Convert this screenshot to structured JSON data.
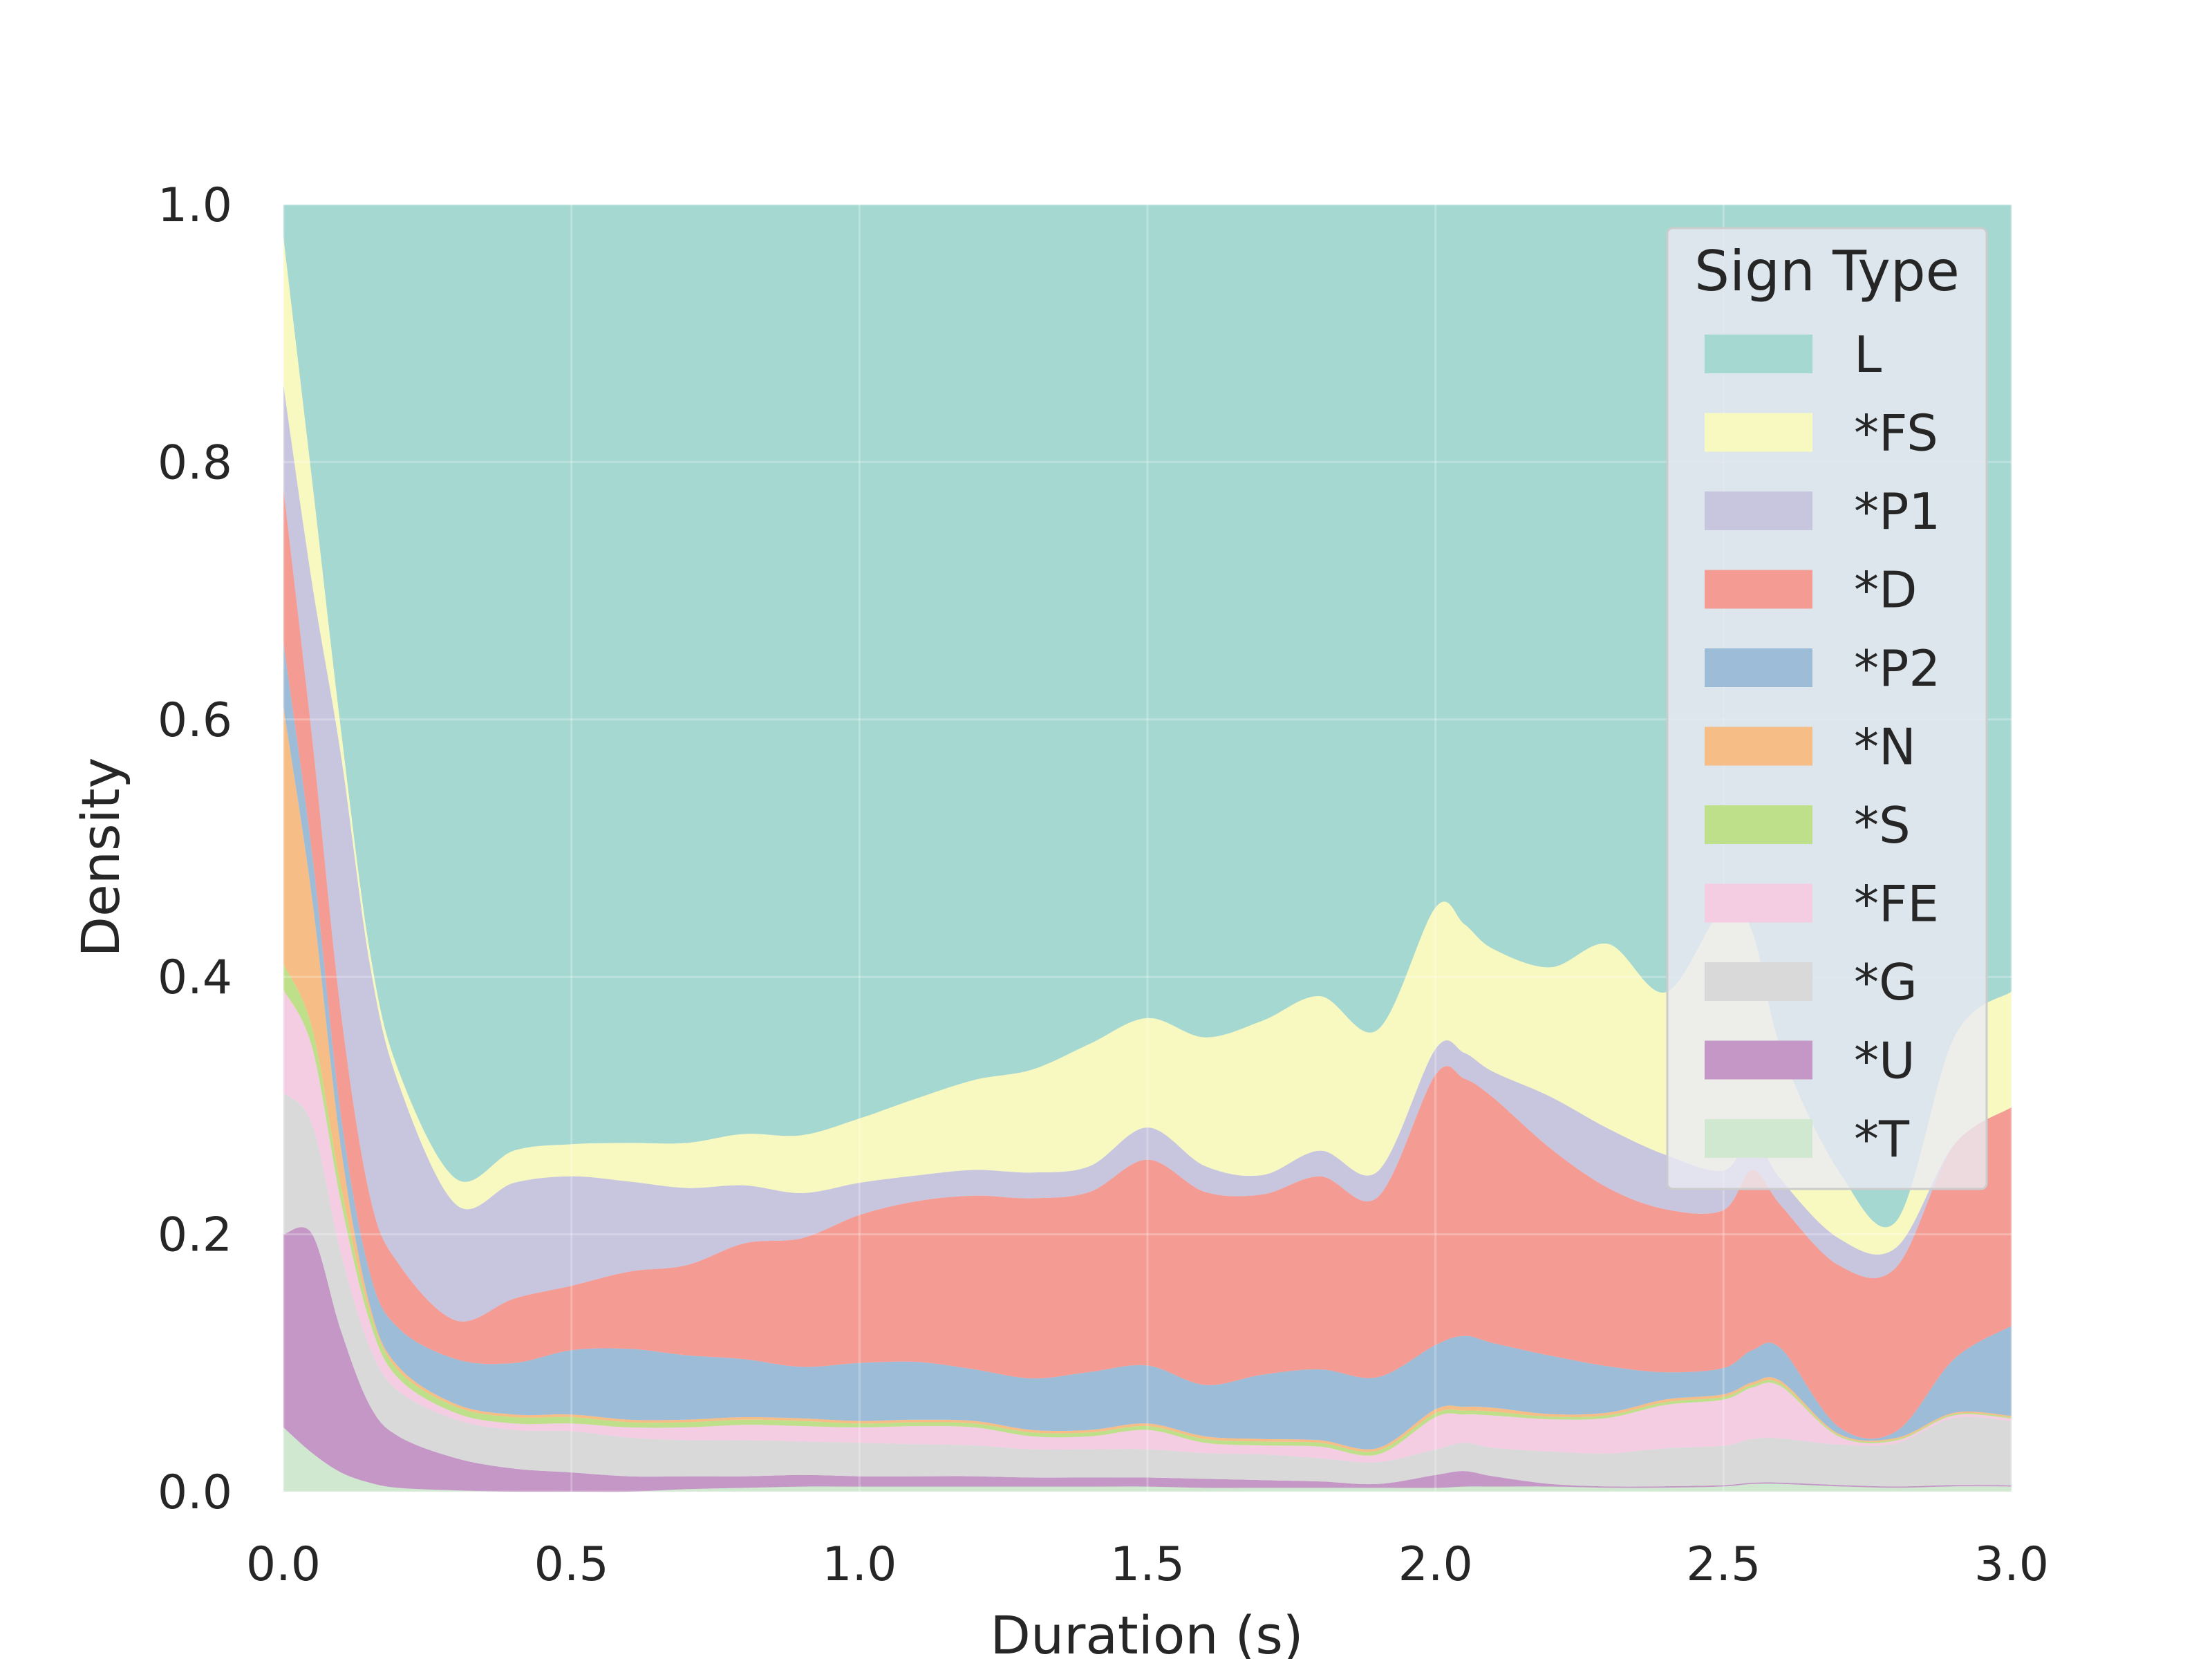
{
  "chart_data": {
    "type": "area",
    "stacked": "normalized",
    "title": "",
    "xlabel": "Duration (s)",
    "ylabel": "Density",
    "xlim": [
      0.0,
      3.0
    ],
    "ylim": [
      0.0,
      1.0
    ],
    "x_ticks": [
      "0.0",
      "0.5",
      "1.0",
      "1.5",
      "2.0",
      "2.5",
      "3.0"
    ],
    "y_ticks": [
      "0.0",
      "0.2",
      "0.4",
      "0.6",
      "0.8",
      "1.0"
    ],
    "grid": true,
    "legend": {
      "title": "Sign Type",
      "placement": "top-right"
    },
    "x": [
      0.0,
      0.05,
      0.1,
      0.15,
      0.2,
      0.3,
      0.4,
      0.5,
      0.6,
      0.7,
      0.8,
      0.9,
      1.0,
      1.1,
      1.2,
      1.3,
      1.4,
      1.5,
      1.6,
      1.7,
      1.8,
      1.9,
      2.0,
      2.05,
      2.1,
      2.2,
      2.3,
      2.4,
      2.5,
      2.55,
      2.6,
      2.7,
      2.8,
      2.9,
      3.0
    ],
    "series": [
      {
        "name": "*T",
        "color": "#cfe8cf",
        "values": [
          0.05,
          0.03,
          0.015,
          0.007,
          0.003,
          0.001,
          0,
          0,
          0,
          0.002,
          0.003,
          0.004,
          0.004,
          0.004,
          0.004,
          0.004,
          0.004,
          0.004,
          0.003,
          0.003,
          0.003,
          0.003,
          0.003,
          0.004,
          0.004,
          0.004,
          0.003,
          0.003,
          0.004,
          0.006,
          0.006,
          0.004,
          0.003,
          0.004,
          0.004
        ]
      },
      {
        "name": "*U",
        "color": "#c497c6",
        "values": [
          0.15,
          0.17,
          0.11,
          0.06,
          0.04,
          0.025,
          0.018,
          0.015,
          0.012,
          0.01,
          0.009,
          0.009,
          0.008,
          0.008,
          0.008,
          0.007,
          0.007,
          0.007,
          0.007,
          0.006,
          0.005,
          0.003,
          0.01,
          0.012,
          0.008,
          0.002,
          0.001,
          0.001,
          0.001,
          0.001,
          0.001,
          0.001,
          0.001,
          0.001,
          0.001
        ]
      },
      {
        "name": "*G",
        "color": "#d9d9d9",
        "values": [
          0.11,
          0.085,
          0.06,
          0.045,
          0.035,
          0.03,
          0.03,
          0.032,
          0.03,
          0.028,
          0.028,
          0.026,
          0.026,
          0.025,
          0.024,
          0.022,
          0.022,
          0.022,
          0.02,
          0.02,
          0.018,
          0.017,
          0.02,
          0.022,
          0.022,
          0.025,
          0.025,
          0.028,
          0.03,
          0.034,
          0.034,
          0.03,
          0.033,
          0.05,
          0.05
        ]
      },
      {
        "name": "*FE",
        "color": "#f5cde2",
        "values": [
          0.08,
          0.06,
          0.04,
          0.02,
          0.01,
          0.005,
          0.005,
          0.006,
          0.008,
          0.01,
          0.012,
          0.012,
          0.012,
          0.014,
          0.014,
          0.01,
          0.01,
          0.015,
          0.008,
          0.007,
          0.009,
          0.006,
          0.025,
          0.022,
          0.025,
          0.025,
          0.027,
          0.032,
          0.035,
          0.04,
          0.04,
          0.006,
          0.002,
          0.002,
          0.002
        ]
      },
      {
        "name": "*S",
        "color": "#bfe08a",
        "values": [
          0.02,
          0.015,
          0.012,
          0.008,
          0.006,
          0.005,
          0.005,
          0.005,
          0.004,
          0.004,
          0.004,
          0.004,
          0.003,
          0.003,
          0.003,
          0.003,
          0.003,
          0.003,
          0.003,
          0.003,
          0.003,
          0.003,
          0.003,
          0.003,
          0.003,
          0.002,
          0.002,
          0.002,
          0.002,
          0.002,
          0.002,
          0.001,
          0.001,
          0.001,
          0.001
        ]
      },
      {
        "name": "*N",
        "color": "#f6be86",
        "values": [
          0.2,
          0.1,
          0.03,
          0.005,
          0.003,
          0.002,
          0.002,
          0.002,
          0.002,
          0.002,
          0.002,
          0.002,
          0.002,
          0.002,
          0.002,
          0.002,
          0.002,
          0.002,
          0.002,
          0.002,
          0.002,
          0.002,
          0.003,
          0.003,
          0.003,
          0.002,
          0.002,
          0.002,
          0.002,
          0.002,
          0.002,
          0.001,
          0.001,
          0.001,
          0.001
        ]
      },
      {
        "name": "*P2",
        "color": "#9cbcd8",
        "values": [
          0.05,
          0.035,
          0.025,
          0.025,
          0.03,
          0.035,
          0.04,
          0.05,
          0.055,
          0.05,
          0.045,
          0.04,
          0.045,
          0.045,
          0.04,
          0.04,
          0.045,
          0.045,
          0.04,
          0.05,
          0.055,
          0.055,
          0.05,
          0.055,
          0.05,
          0.045,
          0.035,
          0.02,
          0.02,
          0.025,
          0.025,
          0.005,
          0.005,
          0.04,
          0.07
        ]
      },
      {
        "name": "*D",
        "color": "#f49c93",
        "values": [
          0.12,
          0.09,
          0.08,
          0.06,
          0.05,
          0.03,
          0.05,
          0.05,
          0.06,
          0.07,
          0.09,
          0.1,
          0.115,
          0.125,
          0.135,
          0.14,
          0.14,
          0.16,
          0.15,
          0.14,
          0.15,
          0.14,
          0.21,
          0.2,
          0.19,
          0.16,
          0.135,
          0.12,
          0.12,
          0.14,
          0.11,
          0.12,
          0.125,
          0.16,
          0.17
        ]
      },
      {
        "name": "*P1",
        "color": "#c8c5df",
        "values": [
          0.08,
          0.12,
          0.2,
          0.18,
          0.14,
          0.09,
          0.09,
          0.085,
          0.07,
          0.06,
          0.045,
          0.035,
          0.025,
          0.02,
          0.02,
          0.02,
          0.02,
          0.025,
          0.02,
          0.015,
          0.02,
          0.02,
          0.02,
          0.02,
          0.02,
          0.04,
          0.045,
          0.04,
          0.03,
          0.025,
          0.02,
          0.02,
          0.015,
          0.0,
          0.0
        ]
      },
      {
        "name": "*FS",
        "color": "#f8f9c0",
        "values": [
          0.115,
          0.08,
          0.02,
          0.01,
          0.01,
          0.02,
          0.025,
          0.025,
          0.03,
          0.035,
          0.04,
          0.045,
          0.05,
          0.06,
          0.07,
          0.08,
          0.095,
          0.085,
          0.1,
          0.12,
          0.12,
          0.11,
          0.11,
          0.1,
          0.095,
          0.1,
          0.14,
          0.12,
          0.2,
          0.16,
          0.1,
          0.05,
          0.02,
          0.08,
          0.09
        ]
      },
      {
        "name": "L",
        "color": "#a5d8d1",
        "values": [
          0.025,
          0.215,
          0.408,
          0.58,
          0.673,
          0.757,
          0.735,
          0.73,
          0.729,
          0.729,
          0.722,
          0.723,
          0.71,
          0.695,
          0.68,
          0.672,
          0.652,
          0.632,
          0.647,
          0.634,
          0.615,
          0.641,
          0.546,
          0.559,
          0.576,
          0.589,
          0.56,
          0.58,
          0.534,
          0.565,
          0.65,
          0.717,
          0.774,
          0.622,
          0.612
        ]
      }
    ]
  }
}
